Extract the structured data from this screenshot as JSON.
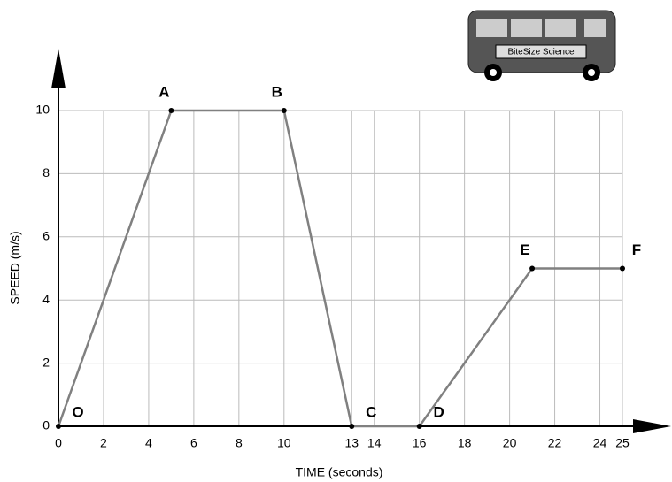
{
  "chart_data": {
    "type": "line",
    "x_label": "TIME (seconds)",
    "y_label": "SPEED  (m/s)",
    "logo_text": "BiteSize Science",
    "x": [
      0,
      5,
      10,
      13,
      16,
      21,
      25
    ],
    "series": [
      {
        "color": "#808080",
        "values": [
          0,
          10,
          10,
          0,
          0,
          5,
          5
        ]
      }
    ],
    "point_labels": [
      "O",
      "A",
      "B",
      "C",
      "D",
      "E",
      "F"
    ],
    "xlim": [
      0,
      25
    ],
    "ylim": [
      0,
      10
    ],
    "xticks": [
      0,
      2,
      4,
      6,
      8,
      10,
      13,
      14,
      16,
      18,
      20,
      22,
      24,
      25
    ],
    "yticks": [
      0,
      2,
      4,
      6,
      8,
      10
    ],
    "grid": true
  }
}
